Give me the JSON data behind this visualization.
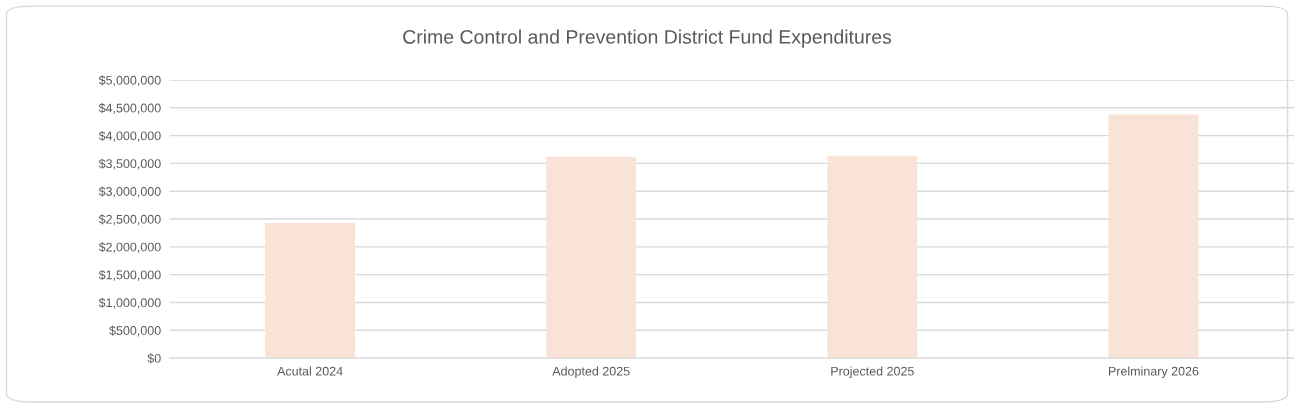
{
  "chart_data": {
    "type": "bar",
    "title": "Crime Control and Prevention District Fund Expenditures",
    "categories": [
      "Acutal 2024",
      "Adopted 2025",
      "Projected 2025",
      "Prelminary 2026"
    ],
    "series": [
      {
        "color": "#f9e3d6",
        "values": [
          2430000,
          3620000,
          3640000,
          4380000
        ]
      }
    ],
    "ylim": [
      0,
      5000000
    ],
    "yticks": [
      {
        "value": 0,
        "label": "$0"
      },
      {
        "value": 500000,
        "label": "$500,000"
      },
      {
        "value": 1000000,
        "label": "$1,000,000"
      },
      {
        "value": 1500000,
        "label": "$1,500,000"
      },
      {
        "value": 2000000,
        "label": "$2,000,000"
      },
      {
        "value": 2500000,
        "label": "$2,500,000"
      },
      {
        "value": 3000000,
        "label": "$3,000,000"
      },
      {
        "value": 3500000,
        "label": "$3,500,000"
      },
      {
        "value": 4000000,
        "label": "$4,000,000"
      },
      {
        "value": 4500000,
        "label": "$4,500,000"
      },
      {
        "value": 5000000,
        "label": "$5,000,000"
      }
    ],
    "grid": "y",
    "legend": false
  }
}
